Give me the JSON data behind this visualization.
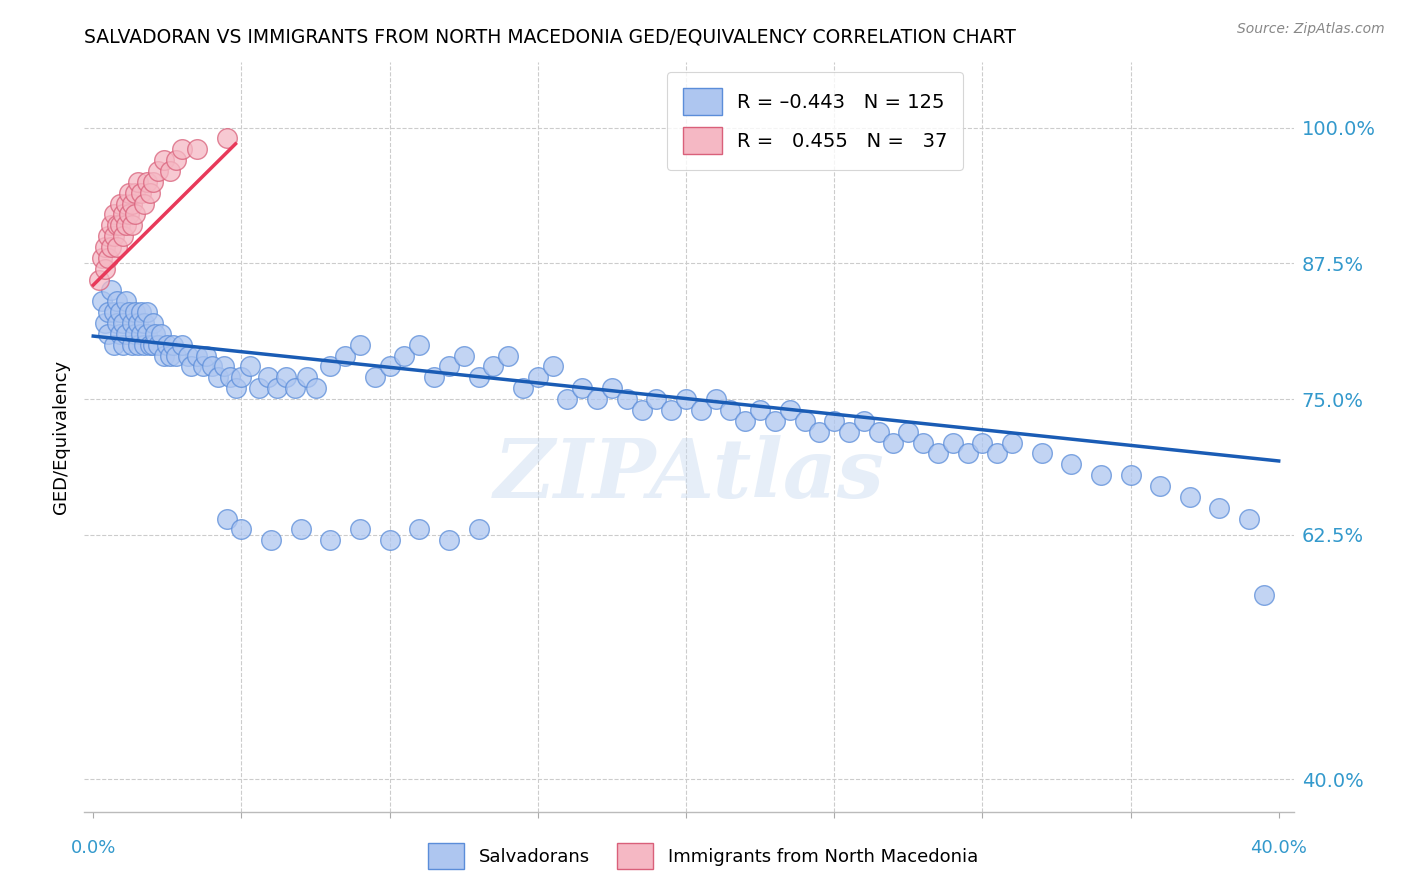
{
  "title": "SALVADORAN VS IMMIGRANTS FROM NORTH MACEDONIA GED/EQUIVALENCY CORRELATION CHART",
  "source": "Source: ZipAtlas.com",
  "ylabel": "GED/Equivalency",
  "ytick_labels": [
    "40.0%",
    "62.5%",
    "75.0%",
    "87.5%",
    "100.0%"
  ],
  "ytick_values": [
    0.4,
    0.625,
    0.75,
    0.875,
    1.0
  ],
  "xlim": [
    -0.003,
    0.405
  ],
  "ylim": [
    0.37,
    1.06
  ],
  "salvadoran_color": "#aec6f0",
  "macedonia_color": "#f5b8c4",
  "salvadoran_edge": "#5b8dd9",
  "macedonia_edge": "#d9607a",
  "trend_blue": "#1a5cb5",
  "trend_pink": "#e8395a",
  "watermark": "ZIPAtlas",
  "salvadoran_x": [
    0.003,
    0.004,
    0.005,
    0.005,
    0.006,
    0.007,
    0.007,
    0.008,
    0.008,
    0.009,
    0.009,
    0.01,
    0.01,
    0.011,
    0.011,
    0.012,
    0.013,
    0.013,
    0.014,
    0.014,
    0.015,
    0.015,
    0.016,
    0.016,
    0.017,
    0.017,
    0.018,
    0.018,
    0.019,
    0.02,
    0.02,
    0.021,
    0.022,
    0.023,
    0.024,
    0.025,
    0.026,
    0.027,
    0.028,
    0.03,
    0.032,
    0.033,
    0.035,
    0.037,
    0.038,
    0.04,
    0.042,
    0.044,
    0.046,
    0.048,
    0.05,
    0.053,
    0.056,
    0.059,
    0.062,
    0.065,
    0.068,
    0.072,
    0.075,
    0.08,
    0.085,
    0.09,
    0.095,
    0.1,
    0.105,
    0.11,
    0.115,
    0.12,
    0.125,
    0.13,
    0.135,
    0.14,
    0.145,
    0.15,
    0.155,
    0.16,
    0.165,
    0.17,
    0.175,
    0.18,
    0.185,
    0.19,
    0.195,
    0.2,
    0.205,
    0.21,
    0.215,
    0.22,
    0.225,
    0.23,
    0.235,
    0.24,
    0.245,
    0.25,
    0.255,
    0.26,
    0.265,
    0.27,
    0.275,
    0.28,
    0.285,
    0.29,
    0.295,
    0.3,
    0.305,
    0.31,
    0.32,
    0.33,
    0.34,
    0.35,
    0.36,
    0.37,
    0.38,
    0.39,
    0.395,
    0.045,
    0.05,
    0.06,
    0.07,
    0.08,
    0.09,
    0.1,
    0.11,
    0.12,
    0.13
  ],
  "salvadoran_y": [
    0.84,
    0.82,
    0.83,
    0.81,
    0.85,
    0.83,
    0.8,
    0.82,
    0.84,
    0.81,
    0.83,
    0.8,
    0.82,
    0.84,
    0.81,
    0.83,
    0.8,
    0.82,
    0.81,
    0.83,
    0.8,
    0.82,
    0.81,
    0.83,
    0.8,
    0.82,
    0.81,
    0.83,
    0.8,
    0.82,
    0.8,
    0.81,
    0.8,
    0.81,
    0.79,
    0.8,
    0.79,
    0.8,
    0.79,
    0.8,
    0.79,
    0.78,
    0.79,
    0.78,
    0.79,
    0.78,
    0.77,
    0.78,
    0.77,
    0.76,
    0.77,
    0.78,
    0.76,
    0.77,
    0.76,
    0.77,
    0.76,
    0.77,
    0.76,
    0.78,
    0.79,
    0.8,
    0.77,
    0.78,
    0.79,
    0.8,
    0.77,
    0.78,
    0.79,
    0.77,
    0.78,
    0.79,
    0.76,
    0.77,
    0.78,
    0.75,
    0.76,
    0.75,
    0.76,
    0.75,
    0.74,
    0.75,
    0.74,
    0.75,
    0.74,
    0.75,
    0.74,
    0.73,
    0.74,
    0.73,
    0.74,
    0.73,
    0.72,
    0.73,
    0.72,
    0.73,
    0.72,
    0.71,
    0.72,
    0.71,
    0.7,
    0.71,
    0.7,
    0.71,
    0.7,
    0.71,
    0.7,
    0.69,
    0.68,
    0.68,
    0.67,
    0.66,
    0.65,
    0.64,
    0.57,
    0.64,
    0.63,
    0.62,
    0.63,
    0.62,
    0.63,
    0.62,
    0.63,
    0.62,
    0.63
  ],
  "macedonia_x": [
    0.002,
    0.003,
    0.004,
    0.004,
    0.005,
    0.005,
    0.006,
    0.006,
    0.007,
    0.007,
    0.008,
    0.008,
    0.009,
    0.009,
    0.01,
    0.01,
    0.011,
    0.011,
    0.012,
    0.012,
    0.013,
    0.013,
    0.014,
    0.014,
    0.015,
    0.016,
    0.017,
    0.018,
    0.019,
    0.02,
    0.022,
    0.024,
    0.026,
    0.028,
    0.03,
    0.035,
    0.045
  ],
  "macedonia_y": [
    0.86,
    0.88,
    0.89,
    0.87,
    0.9,
    0.88,
    0.91,
    0.89,
    0.92,
    0.9,
    0.91,
    0.89,
    0.93,
    0.91,
    0.92,
    0.9,
    0.93,
    0.91,
    0.94,
    0.92,
    0.93,
    0.91,
    0.94,
    0.92,
    0.95,
    0.94,
    0.93,
    0.95,
    0.94,
    0.95,
    0.96,
    0.97,
    0.96,
    0.97,
    0.98,
    0.98,
    0.99
  ],
  "blue_trend_x": [
    0.0,
    0.4
  ],
  "blue_trend_y": [
    0.808,
    0.693
  ],
  "pink_trend_x": [
    0.0,
    0.048
  ],
  "pink_trend_y": [
    0.855,
    0.985
  ]
}
